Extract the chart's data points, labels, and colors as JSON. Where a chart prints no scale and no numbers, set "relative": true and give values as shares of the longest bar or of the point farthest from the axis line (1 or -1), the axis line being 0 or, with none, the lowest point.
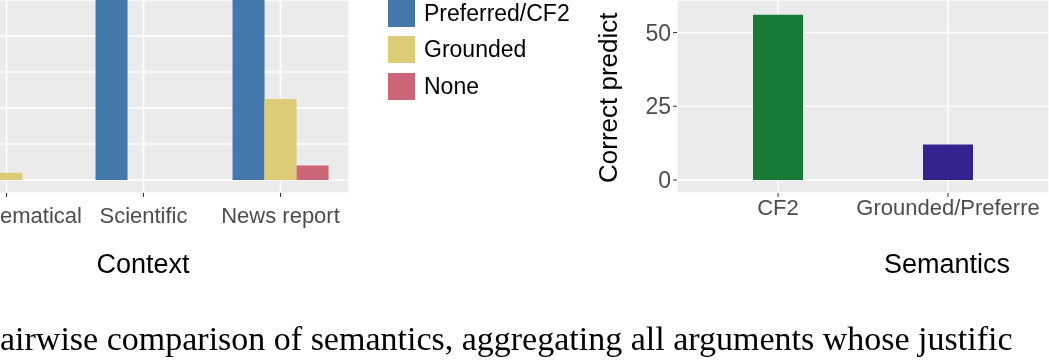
{
  "chart_data": [
    {
      "type": "bar",
      "relative": true,
      "xlabel": "Context",
      "categories": [
        "ematical",
        "Scientific",
        "News report"
      ],
      "series": [
        {
          "name": "Preferred/CF2",
          "color": "#4477aa",
          "values": [
            null,
            1,
            1
          ]
        },
        {
          "name": "Grounded",
          "color": "#ddcc77",
          "values": [
            0.04,
            null,
            0.45
          ]
        },
        {
          "name": "None",
          "color": "#cc6677",
          "values": [
            null,
            null,
            0.08
          ]
        }
      ],
      "legend": "right",
      "grid": true
    },
    {
      "type": "bar",
      "xlabel": "Semantics",
      "ylabel": "Correct predict",
      "categories": [
        "CF2",
        "Grounded/Preferre"
      ],
      "values": [
        56,
        12
      ],
      "colors": [
        "#177a35",
        "#33238f"
      ],
      "ylim": [
        -4.4,
        61
      ],
      "yticks": [
        0,
        25,
        50
      ],
      "grid": true,
      "annotations": [
        "airwise comparison of semantics, aggregating all arguments whose justific"
      ]
    }
  ]
}
